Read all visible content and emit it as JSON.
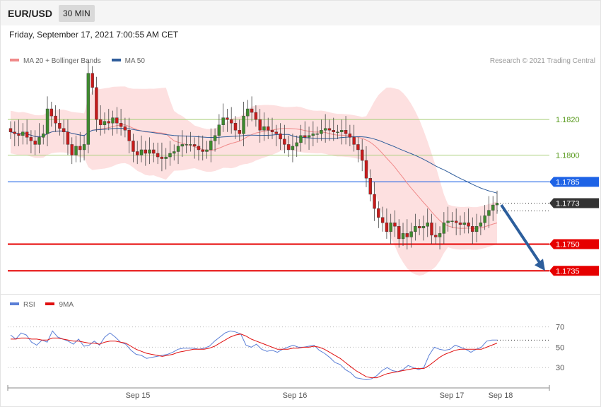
{
  "header": {
    "pair": "EUR/USD",
    "timeframe": "30 MIN"
  },
  "datetime": "Friday, September 17, 2021 7:00:55 AM CET",
  "legend_main": [
    {
      "label": "MA 20 + Bollinger Bands",
      "color": "#f08a8a"
    },
    {
      "label": "MA 50",
      "color": "#2f5d9b"
    }
  ],
  "legend_rsi": [
    {
      "label": "RSI",
      "color": "#5b7fd6"
    },
    {
      "label": "9MA",
      "color": "#e01010"
    }
  ],
  "copyright": "Research © 2021 Trading Central",
  "chart_data": [
    {
      "type": "line",
      "subtype": "candlestick",
      "title": "",
      "x_ticks": [
        "Sep 15",
        "Sep 16",
        "Sep 17",
        "Sep 18"
      ],
      "ylim": [
        1.1722,
        1.1855
      ],
      "grid": false,
      "legend_placement": "top-left",
      "close_series_approx": [
        1.1813,
        1.1812,
        1.1811,
        1.1813,
        1.181,
        1.1808,
        1.1806,
        1.181,
        1.1812,
        1.1826,
        1.1822,
        1.1818,
        1.1815,
        1.1813,
        1.1806,
        1.18,
        1.1805,
        1.1803,
        1.1806,
        1.1846,
        1.1838,
        1.182,
        1.1817,
        1.1819,
        1.1818,
        1.1821,
        1.1818,
        1.1816,
        1.1814,
        1.1808,
        1.1802,
        1.18,
        1.1803,
        1.1801,
        1.1803,
        1.1801,
        1.1799,
        1.1798,
        1.1799,
        1.1801,
        1.1802,
        1.1805,
        1.1806,
        1.1806,
        1.1806,
        1.1805,
        1.1803,
        1.1802,
        1.1803,
        1.1808,
        1.1811,
        1.1817,
        1.1821,
        1.182,
        1.1818,
        1.1814,
        1.1812,
        1.1822,
        1.1826,
        1.1824,
        1.182,
        1.1814,
        1.1816,
        1.1814,
        1.1813,
        1.1812,
        1.1809,
        1.1806,
        1.1803,
        1.1805,
        1.1807,
        1.1811,
        1.181,
        1.1811,
        1.1812,
        1.1812,
        1.1814,
        1.1815,
        1.1814,
        1.1813,
        1.1813,
        1.1814,
        1.1812,
        1.181,
        1.1806,
        1.1803,
        1.1797,
        1.1787,
        1.1778,
        1.177,
        1.1765,
        1.1762,
        1.1757,
        1.1762,
        1.176,
        1.1753,
        1.1756,
        1.1754,
        1.1757,
        1.176,
        1.1759,
        1.176,
        1.1762,
        1.1755,
        1.1754,
        1.1756,
        1.1762,
        1.1763,
        1.1763,
        1.1762,
        1.1761,
        1.1762,
        1.176,
        1.1757,
        1.176,
        1.1762,
        1.1766,
        1.1769,
        1.1772,
        1.1773
      ],
      "ma20": {
        "name": "MA 20 + Bollinger Bands",
        "color": "#f08a8a"
      },
      "ma50": {
        "name": "MA 50",
        "color": "#2f5d9b"
      },
      "levels": [
        {
          "value": 1.182,
          "label": "1.1820",
          "kind": "resistance",
          "color": "#a9cf7a",
          "text_color": "#5a9b1f"
        },
        {
          "value": 1.18,
          "label": "1.1800",
          "kind": "resistance",
          "color": "#a9cf7a",
          "text_color": "#5a9b1f"
        },
        {
          "value": 1.1785,
          "label": "1.1785",
          "kind": "pivot",
          "color": "#1e63e6",
          "text_color": "#ffffff"
        },
        {
          "value": 1.1773,
          "label": "1.1773",
          "kind": "last-price",
          "color": "#333333",
          "text_color": "#ffffff"
        },
        {
          "value": 1.175,
          "label": "1.1750",
          "kind": "support",
          "color": "#e60000",
          "text_color": "#ffffff"
        },
        {
          "value": 1.1735,
          "label": "1.1735",
          "kind": "support",
          "color": "#e60000",
          "text_color": "#ffffff"
        }
      ],
      "forecast_arrow": {
        "from": 1.1772,
        "to": 1.1735,
        "color": "#2c5e9c"
      }
    },
    {
      "type": "line",
      "title": "",
      "series": [
        {
          "name": "RSI",
          "color": "#5b7fd6"
        },
        {
          "name": "9MA",
          "color": "#e01010"
        }
      ],
      "levels": [
        70,
        50,
        30
      ],
      "level_labels": [
        "70",
        "50",
        "30"
      ],
      "ylim": [
        10,
        85
      ],
      "rsi_approx": [
        62,
        58,
        64,
        62,
        55,
        52,
        57,
        55,
        66,
        60,
        58,
        56,
        53,
        58,
        51,
        52,
        56,
        52,
        60,
        64,
        60,
        55,
        53,
        47,
        43,
        42,
        39,
        40,
        41,
        42,
        43,
        45,
        48,
        49,
        49,
        49,
        48,
        49,
        51,
        56,
        60,
        64,
        66,
        65,
        63,
        52,
        50,
        53,
        48,
        46,
        47,
        45,
        48,
        50,
        52,
        50,
        50,
        51,
        52,
        47,
        44,
        40,
        35,
        33,
        28,
        25,
        20,
        19,
        18,
        19,
        22,
        27,
        30,
        27,
        26,
        28,
        32,
        30,
        28,
        30,
        42,
        50,
        48,
        47,
        48,
        52,
        50,
        48,
        45,
        48,
        50,
        56,
        57,
        57
      ],
      "ma9_approx": [
        58,
        58,
        59,
        59,
        58,
        58,
        57,
        57,
        59,
        59,
        58,
        57,
        56,
        56,
        55,
        54,
        54,
        53,
        55,
        56,
        56,
        55,
        54,
        51,
        48,
        46,
        44,
        43,
        42,
        41,
        42,
        43,
        45,
        46,
        47,
        48,
        48,
        48,
        49,
        51,
        54,
        57,
        60,
        62,
        63,
        61,
        58,
        56,
        54,
        52,
        50,
        48,
        48,
        48,
        49,
        49,
        50,
        50,
        51,
        50,
        48,
        45,
        42,
        39,
        35,
        31,
        27,
        24,
        21,
        20,
        20,
        22,
        24,
        25,
        26,
        27,
        28,
        29,
        29,
        29,
        32,
        36,
        40,
        43,
        45,
        47,
        48,
        48,
        48,
        48,
        48,
        50,
        52,
        54
      ]
    }
  ]
}
